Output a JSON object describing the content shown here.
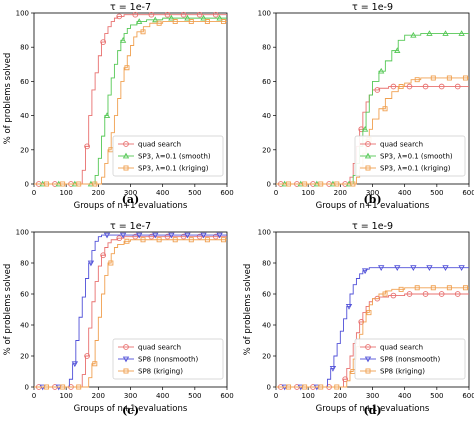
{
  "chart_data": [
    {
      "type": "line",
      "title": "τ = 1e-7",
      "xlabel": "Groups of n+1 evaluations",
      "ylabel": "% of problems solved",
      "caption": "(a)",
      "xlim": [
        0,
        600
      ],
      "ylim": [
        0,
        100
      ],
      "xticks": [
        "0",
        "100",
        "200",
        "300",
        "400",
        "500",
        "600"
      ],
      "yticks": [
        "0",
        "20",
        "40",
        "60",
        "80",
        "100"
      ],
      "legend_position": "lower right",
      "series": [
        {
          "name": "quad search",
          "color": "#e8706f",
          "marker": "circle",
          "x": [
            0,
            140,
            150,
            160,
            170,
            180,
            190,
            200,
            210,
            220,
            230,
            240,
            250,
            260,
            280,
            300,
            350,
            400,
            450,
            500,
            550,
            600
          ],
          "y": [
            0,
            0,
            8,
            22,
            40,
            55,
            65,
            75,
            83,
            88,
            92,
            95,
            97,
            98,
            99,
            99,
            99,
            99,
            99,
            99,
            99,
            99
          ]
        },
        {
          "name": "SP3, λ=0.1 (smooth)",
          "color": "#55c855",
          "marker": "triangle",
          "x": [
            0,
            180,
            190,
            200,
            210,
            220,
            230,
            240,
            250,
            260,
            270,
            280,
            290,
            300,
            320,
            350,
            400,
            450,
            500,
            550,
            600
          ],
          "y": [
            0,
            0,
            5,
            15,
            28,
            40,
            52,
            62,
            70,
            78,
            84,
            88,
            91,
            93,
            95,
            96,
            97,
            97,
            97,
            97,
            97
          ]
        },
        {
          "name": "SP3, λ=0.1 (kriging)",
          "color": "#f0a050",
          "marker": "square",
          "x": [
            0,
            200,
            210,
            220,
            230,
            240,
            250,
            260,
            270,
            280,
            290,
            300,
            310,
            320,
            340,
            360,
            400,
            450,
            500,
            550,
            600
          ],
          "y": [
            0,
            0,
            4,
            12,
            20,
            30,
            40,
            50,
            60,
            68,
            75,
            81,
            86,
            89,
            92,
            94,
            95,
            95,
            95,
            95,
            95
          ]
        }
      ]
    },
    {
      "type": "line",
      "title": "τ = 1e-9",
      "xlabel": "Groups of n+1 evaluations",
      "ylabel": "",
      "caption": "(b)",
      "xlim": [
        0,
        600
      ],
      "ylim": [
        0,
        100
      ],
      "xticks": [
        "0",
        "100",
        "200",
        "300",
        "400",
        "500",
        "600"
      ],
      "yticks": [
        "0",
        "20",
        "40",
        "60",
        "80",
        "100"
      ],
      "legend_position": "lower right",
      "series": [
        {
          "name": "quad search",
          "color": "#e8706f",
          "marker": "circle",
          "x": [
            0,
            220,
            230,
            240,
            250,
            260,
            270,
            280,
            290,
            300,
            320,
            350,
            400,
            450,
            500,
            550,
            600
          ],
          "y": [
            0,
            0,
            4,
            12,
            22,
            32,
            42,
            48,
            52,
            55,
            56,
            57,
            57,
            57,
            57,
            57,
            57
          ]
        },
        {
          "name": "SP3, λ=0.1 (smooth)",
          "color": "#55c855",
          "marker": "triangle",
          "x": [
            0,
            230,
            240,
            250,
            260,
            270,
            280,
            290,
            300,
            320,
            340,
            360,
            380,
            400,
            450,
            500,
            550,
            600
          ],
          "y": [
            0,
            0,
            5,
            12,
            22,
            32,
            42,
            52,
            60,
            66,
            72,
            78,
            84,
            87,
            88,
            88,
            88,
            88
          ]
        },
        {
          "name": "SP3, λ=0.1 (kriging)",
          "color": "#f0a050",
          "marker": "square",
          "x": [
            0,
            240,
            250,
            260,
            270,
            280,
            290,
            300,
            320,
            340,
            360,
            380,
            400,
            420,
            450,
            500,
            550,
            600
          ],
          "y": [
            0,
            0,
            4,
            10,
            18,
            26,
            32,
            38,
            44,
            50,
            54,
            57,
            59,
            61,
            62,
            62,
            62,
            62
          ]
        }
      ]
    },
    {
      "type": "line",
      "title": "τ = 1e-7",
      "xlabel": "Groups of n+1 evaluations",
      "ylabel": "% of problems solved",
      "caption": "(c)",
      "xlim": [
        0,
        600
      ],
      "ylim": [
        0,
        100
      ],
      "xticks": [
        "0",
        "100",
        "200",
        "300",
        "400",
        "500",
        "600"
      ],
      "yticks": [
        "0",
        "20",
        "40",
        "60",
        "80",
        "100"
      ],
      "legend_position": "lower right",
      "series": [
        {
          "name": "quad search",
          "color": "#e8706f",
          "marker": "circle",
          "x": [
            0,
            140,
            150,
            160,
            170,
            180,
            190,
            200,
            210,
            220,
            230,
            240,
            260,
            280,
            300,
            350,
            400,
            450,
            500,
            550,
            600
          ],
          "y": [
            0,
            0,
            8,
            20,
            38,
            55,
            68,
            78,
            85,
            90,
            93,
            95,
            96,
            97,
            97,
            97,
            97,
            97,
            97,
            97,
            97
          ]
        },
        {
          "name": "SP8 (nonsmooth)",
          "color": "#5050d8",
          "marker": "triangle-down",
          "x": [
            0,
            100,
            110,
            120,
            130,
            140,
            150,
            160,
            170,
            180,
            190,
            200,
            210,
            220,
            250,
            300,
            350,
            400,
            450,
            500,
            550,
            600
          ],
          "y": [
            0,
            0,
            5,
            15,
            30,
            45,
            58,
            70,
            80,
            88,
            94,
            97,
            98,
            98,
            98,
            98,
            98,
            98,
            98,
            98,
            98,
            98
          ]
        },
        {
          "name": "SP8 (kriging)",
          "color": "#f0a050",
          "marker": "square",
          "x": [
            0,
            160,
            170,
            180,
            190,
            200,
            210,
            220,
            230,
            240,
            250,
            260,
            280,
            300,
            350,
            400,
            450,
            500,
            550,
            600
          ],
          "y": [
            0,
            0,
            6,
            15,
            30,
            45,
            60,
            72,
            80,
            86,
            90,
            92,
            94,
            95,
            95,
            95,
            95,
            95,
            95,
            95
          ]
        }
      ]
    },
    {
      "type": "line",
      "title": "τ = 1e-9",
      "xlabel": "Groups of n+1 evaluations",
      "ylabel": "% of problems solved",
      "caption": "(d)",
      "xlim": [
        0,
        600
      ],
      "ylim": [
        0,
        100
      ],
      "xticks": [
        "0",
        "100",
        "200",
        "300",
        "400",
        "500",
        "600"
      ],
      "yticks": [
        "0",
        "20",
        "40",
        "60",
        "80",
        "100"
      ],
      "legend_position": "lower right",
      "series": [
        {
          "name": "quad search",
          "color": "#e8706f",
          "marker": "circle",
          "x": [
            0,
            200,
            210,
            220,
            230,
            240,
            250,
            260,
            270,
            280,
            290,
            300,
            320,
            350,
            400,
            450,
            500,
            550,
            600
          ],
          "y": [
            0,
            0,
            5,
            12,
            20,
            28,
            35,
            42,
            48,
            52,
            55,
            57,
            58,
            59,
            60,
            60,
            60,
            60,
            60
          ]
        },
        {
          "name": "SP8 (nonsmooth)",
          "color": "#5050d8",
          "marker": "triangle-down",
          "x": [
            0,
            150,
            160,
            170,
            180,
            190,
            200,
            210,
            220,
            230,
            240,
            250,
            260,
            270,
            280,
            290,
            300,
            320,
            350,
            400,
            450,
            500,
            550,
            600
          ],
          "y": [
            0,
            0,
            5,
            12,
            20,
            28,
            36,
            44,
            52,
            60,
            66,
            70,
            73,
            75,
            76,
            77,
            77,
            77,
            77,
            77,
            77,
            77,
            77,
            77
          ]
        },
        {
          "name": "SP8 (kriging)",
          "color": "#f0a050",
          "marker": "square",
          "x": [
            0,
            210,
            220,
            230,
            240,
            250,
            260,
            270,
            280,
            290,
            300,
            320,
            340,
            360,
            400,
            450,
            500,
            550,
            600
          ],
          "y": [
            0,
            0,
            4,
            10,
            18,
            26,
            34,
            42,
            48,
            53,
            57,
            60,
            62,
            63,
            64,
            64,
            64,
            64,
            64
          ]
        }
      ]
    }
  ]
}
